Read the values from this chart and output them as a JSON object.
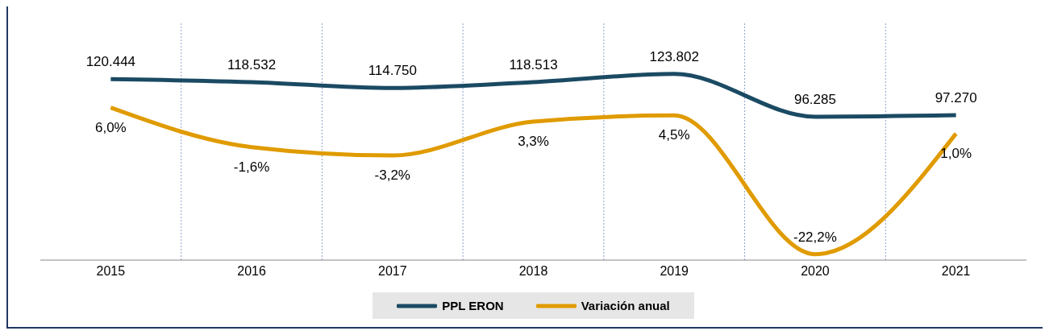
{
  "chart_data": {
    "type": "line",
    "categories": [
      "2015",
      "2016",
      "2017",
      "2018",
      "2019",
      "2020",
      "2021"
    ],
    "series": [
      {
        "name": "PPL ERON",
        "color": "#1b4a63",
        "values": [
          120444,
          118532,
          114750,
          118513,
          123802,
          96285,
          97270
        ],
        "value_labels": [
          "120.444",
          "118.532",
          "114.750",
          "118.513",
          "123.802",
          "96.285",
          "97.270"
        ]
      },
      {
        "name": "Variación anual",
        "color": "#e09b00",
        "axis": "y2",
        "values": [
          6.0,
          -1.6,
          -3.2,
          3.3,
          4.5,
          -22.2,
          1.0
        ],
        "value_labels": [
          "6,0%",
          "-1,6%",
          "-3,2%",
          "3,3%",
          "4,5%",
          "-22,2%",
          "1,0%"
        ]
      }
    ],
    "grid": "x",
    "legend": "bottom",
    "marker": "none",
    "line_style": "solid",
    "tick_labels": "x"
  }
}
